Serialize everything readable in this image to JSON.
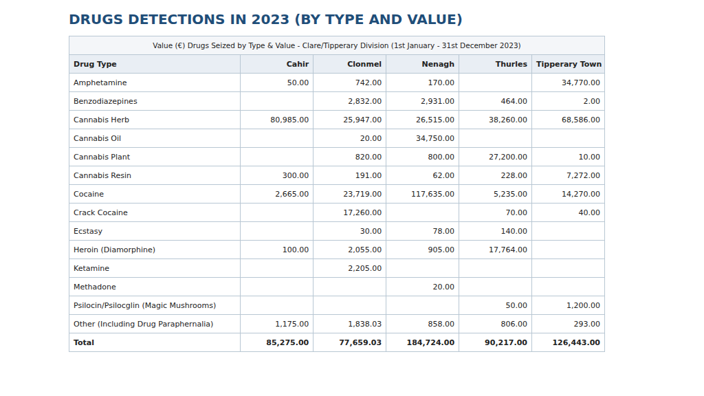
{
  "chart_data": {
    "type": "table",
    "title": "DRUGS DETECTIONS IN 2023 (BY TYPE AND VALUE)",
    "subtitle": "Value (€) Drugs Seized by Type & Value - Clare/Tipperary Division (1st January - 31st December 2023)",
    "columns": [
      "Drug Type",
      "Cahir",
      "Clonmel",
      "Nenagh",
      "Thurles",
      "Tipperary Town"
    ],
    "rows": [
      [
        "Amphetamine",
        "50.00",
        "742.00",
        "170.00",
        null,
        "34,770.00"
      ],
      [
        "Benzodiazepines",
        null,
        "2,832.00",
        "2,931.00",
        "464.00",
        "2.00"
      ],
      [
        "Cannabis Herb",
        "80,985.00",
        "25,947.00",
        "26,515.00",
        "38,260.00",
        "68,586.00"
      ],
      [
        "Cannabis Oil",
        null,
        "20.00",
        "34,750.00",
        null,
        null
      ],
      [
        "Cannabis Plant",
        null,
        "820.00",
        "800.00",
        "27,200.00",
        "10.00"
      ],
      [
        "Cannabis Resin",
        "300.00",
        "191.00",
        "62.00",
        "228.00",
        "7,272.00"
      ],
      [
        "Cocaine",
        "2,665.00",
        "23,719.00",
        "117,635.00",
        "5,235.00",
        "14,270.00"
      ],
      [
        "Crack Cocaine",
        null,
        "17,260.00",
        null,
        "70.00",
        "40.00"
      ],
      [
        "Ecstasy",
        null,
        "30.00",
        "78.00",
        "140.00",
        null
      ],
      [
        "Heroin (Diamorphine)",
        "100.00",
        "2,055.00",
        "905.00",
        "17,764.00",
        null
      ],
      [
        "Ketamine",
        null,
        "2,205.00",
        null,
        null,
        null
      ],
      [
        "Methadone",
        null,
        null,
        "20.00",
        null,
        null
      ],
      [
        "Psilocin/Psilocglin (Magic Mushrooms)",
        null,
        null,
        null,
        "50.00",
        "1,200.00"
      ],
      [
        "Other (Including Drug Paraphernalia)",
        "1,175.00",
        "1,838.03",
        "858.00",
        "806.00",
        "293.00"
      ],
      [
        "Total",
        "85,275.00",
        "77,659.03",
        "184,724.00",
        "90,217.00",
        "126,443.00"
      ]
    ]
  }
}
